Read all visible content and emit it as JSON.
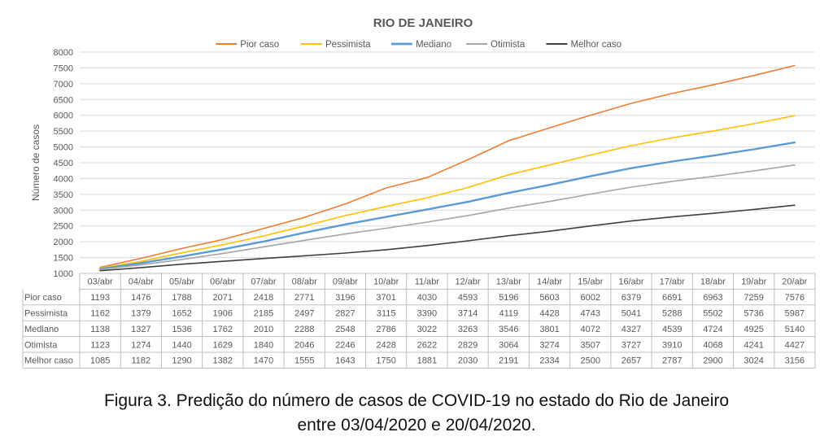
{
  "chart_data": {
    "type": "line",
    "title": "RIO DE JANEIRO",
    "ylabel": "Número de casos",
    "xlabel": "",
    "ylim": [
      1000,
      8000
    ],
    "yticks": [
      1000,
      1500,
      2000,
      2500,
      3000,
      3500,
      4000,
      4500,
      5000,
      5500,
      6000,
      6500,
      7000,
      7500,
      8000
    ],
    "grid": true,
    "legend": "top",
    "data_table": true,
    "categories": [
      "03/abr",
      "04/abr",
      "05/abr",
      "06/abr",
      "07/abr",
      "08/abr",
      "09/abr",
      "10/abr",
      "11/abr",
      "12/abr",
      "13/abr",
      "14/abr",
      "15/abr",
      "16/abr",
      "17/abr",
      "18/abr",
      "19/abr",
      "20/abr"
    ],
    "series": [
      {
        "name": "Pior caso",
        "color": "#ED7D31",
        "width": 1.6,
        "values": [
          1193,
          1476,
          1788,
          2071,
          2418,
          2771,
          3196,
          3701,
          4030,
          4593,
          5196,
          5603,
          6002,
          6379,
          6691,
          6963,
          7259,
          7576
        ]
      },
      {
        "name": "Pessimista",
        "color": "#FFC000",
        "width": 1.6,
        "values": [
          1162,
          1379,
          1652,
          1906,
          2185,
          2497,
          2827,
          3115,
          3390,
          3714,
          4119,
          4428,
          4743,
          5041,
          5288,
          5502,
          5736,
          5987
        ]
      },
      {
        "name": "Mediano",
        "color": "#5B9BD5",
        "width": 2.4,
        "values": [
          1138,
          1327,
          1536,
          1762,
          2010,
          2288,
          2548,
          2786,
          3022,
          3263,
          3546,
          3801,
          4072,
          4327,
          4539,
          4724,
          4925,
          5140
        ]
      },
      {
        "name": "Otimista",
        "color": "#A5A5A5",
        "width": 1.6,
        "values": [
          1123,
          1274,
          1440,
          1629,
          1840,
          2046,
          2246,
          2428,
          2622,
          2829,
          3064,
          3274,
          3507,
          3727,
          3910,
          4068,
          4241,
          4427
        ]
      },
      {
        "name": "Melhor caso",
        "color": "#404040",
        "width": 1.6,
        "values": [
          1085,
          1182,
          1290,
          1382,
          1470,
          1555,
          1643,
          1750,
          1881,
          2030,
          2191,
          2334,
          2500,
          2657,
          2787,
          2900,
          3024,
          3156
        ]
      }
    ]
  },
  "caption": {
    "line1": "Figura 3. Predição do número de casos de COVID-19 no estado do Rio de Janeiro",
    "line2": "entre 03/04/2020 e 20/04/2020."
  }
}
